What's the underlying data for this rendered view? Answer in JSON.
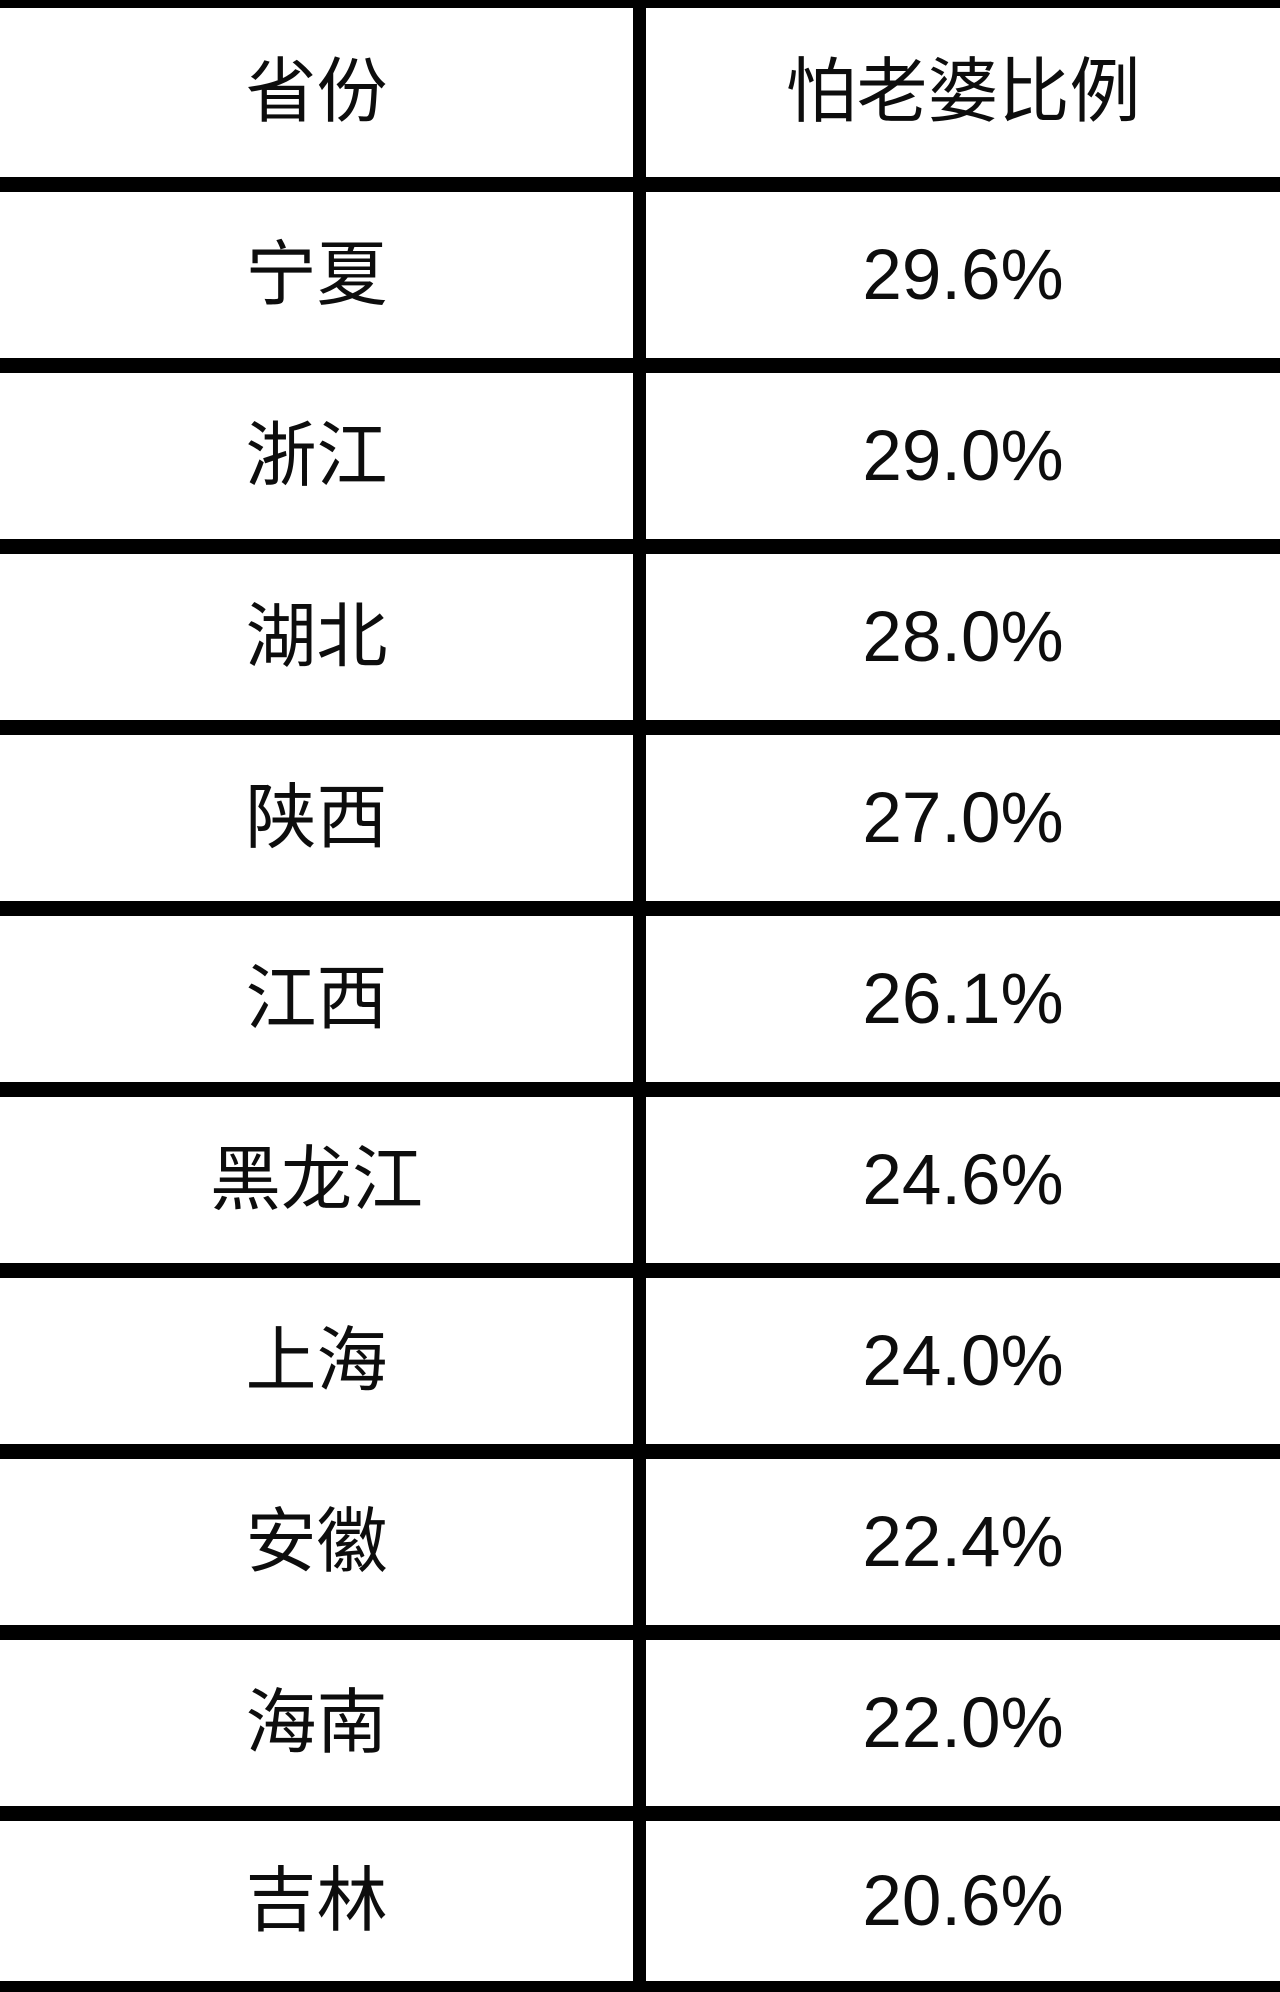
{
  "chart_data": {
    "type": "table",
    "title": "",
    "columns": [
      "省份",
      "怕老婆比例"
    ],
    "rows": [
      [
        "宁夏",
        "29.6%"
      ],
      [
        "浙江",
        "29.0%"
      ],
      [
        "湖北",
        "28.0%"
      ],
      [
        "陕西",
        "27.0%"
      ],
      [
        "江西",
        "26.1%"
      ],
      [
        "黑龙江",
        "24.6%"
      ],
      [
        "上海",
        "24.0%"
      ],
      [
        "安徽",
        "22.4%"
      ],
      [
        "海南",
        "22.0%"
      ],
      [
        "吉林",
        "20.6%"
      ]
    ],
    "values_numeric": [
      29.6,
      29.0,
      28.0,
      27.0,
      26.1,
      24.6,
      24.0,
      22.4,
      22.0,
      20.6
    ],
    "layout": {
      "grid": "horizontal rules full width, single vertical divider between columns",
      "border_color": "#000000",
      "background_color": "#ffffff",
      "text_color": "#0d0d0d"
    }
  }
}
